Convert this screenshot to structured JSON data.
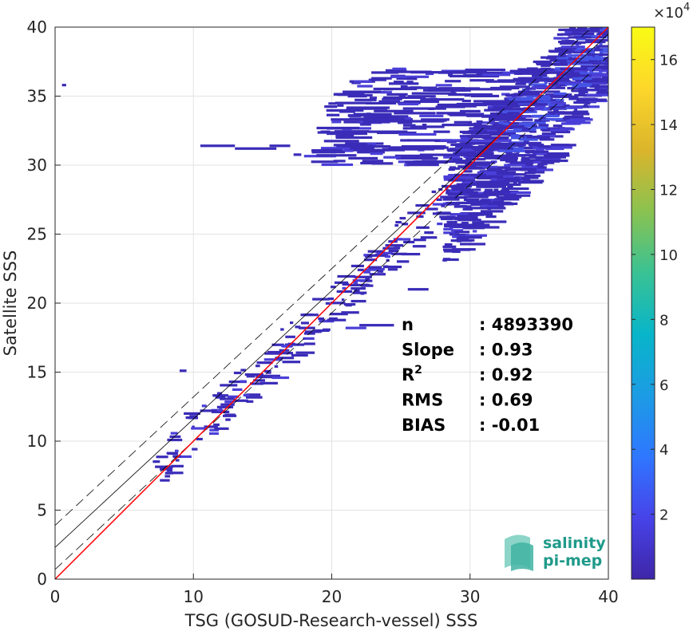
{
  "chart_data": {
    "type": "heatmap",
    "xlabel": "TSG (GOSUD-Research-vessel) SSS",
    "ylabel": "Satellite SSS",
    "xlim": [
      0,
      40
    ],
    "ylim": [
      0,
      40
    ],
    "x_ticks": [
      "0",
      "10",
      "20",
      "30",
      "40"
    ],
    "y_ticks": [
      "0",
      "5",
      "10",
      "15",
      "20",
      "25",
      "30",
      "35",
      "40"
    ],
    "grid": true,
    "colorbar": {
      "multiplier": "10",
      "multiplier_exp": "4",
      "range": [
        0,
        17
      ],
      "ticks": [
        "2",
        "4",
        "6",
        "8",
        "10",
        "12",
        "14",
        "16"
      ],
      "colormap": [
        "#3e26a8",
        "#4743e9",
        "#2f77ff",
        "#1c9ce4",
        "#08b5c9",
        "#3ac293",
        "#8bc250",
        "#dbb52b",
        "#fdd72a",
        "#f9fb15"
      ]
    },
    "identity_line": {
      "color": "#ff0000",
      "x": [
        0,
        40
      ],
      "y": [
        0,
        40
      ]
    },
    "regression_line": {
      "color": "#000000",
      "x": [
        0,
        40
      ],
      "y": [
        2.3,
        39.5
      ]
    },
    "rms_bounds_dashed": [
      {
        "x": [
          0,
          40
        ],
        "y": [
          3.9,
          41.1
        ]
      },
      {
        "x": [
          0,
          40
        ],
        "y": [
          0.7,
          37.9
        ]
      }
    ],
    "stats": [
      {
        "label": "n",
        "sup": "",
        "value": ": 4893390"
      },
      {
        "label": "Slope",
        "sup": "",
        "value": ": 0.93"
      },
      {
        "label": "R",
        "sup": "2",
        "value": ": 0.92"
      },
      {
        "label": "RMS",
        "sup": "",
        "value": ": 0.69"
      },
      {
        "label": "BIAS",
        "sup": "",
        "value": ": -0.01"
      }
    ]
  },
  "logo": {
    "line1": "salinity",
    "line2": "pi-mep"
  }
}
